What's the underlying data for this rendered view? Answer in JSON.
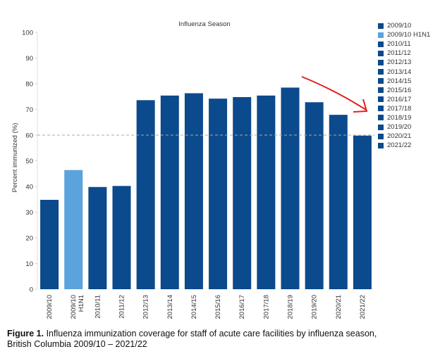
{
  "chart_data": {
    "type": "bar",
    "title": "Influenza Season",
    "ylabel": "Percent immunized (%)",
    "xlabel": "",
    "ylim": [
      0,
      100
    ],
    "yticks": [
      0,
      10,
      20,
      30,
      40,
      50,
      60,
      70,
      80,
      90,
      100
    ],
    "categories": [
      "2009/10",
      "2009/10 H1N1",
      "2010/11",
      "2011/12",
      "2012/13",
      "2013/14",
      "2014/15",
      "2015/16",
      "2016/17",
      "2017/18",
      "2018/19",
      "2019/20",
      "2020/21",
      "2021/22"
    ],
    "values": [
      34.8,
      46.4,
      39.8,
      40.2,
      73.6,
      75.4,
      76.3,
      74.2,
      74.8,
      75.4,
      78.5,
      72.8,
      67.9,
      59.8
    ],
    "bar_colors": [
      "#0b4a8c",
      "#5ba3dc",
      "#0b4a8c",
      "#0b4a8c",
      "#0b4a8c",
      "#0b4a8c",
      "#0b4a8c",
      "#0b4a8c",
      "#0b4a8c",
      "#0b4a8c",
      "#0b4a8c",
      "#0b4a8c",
      "#0b4a8c",
      "#0b4a8c"
    ],
    "reference_line": 60,
    "grid": false,
    "legend_position": "right",
    "annotation": "red arrow pointing down toward the 2021/22 bar"
  },
  "legend": {
    "items": [
      {
        "label": "2009/10",
        "color": "#0b4a8c"
      },
      {
        "label": "2009/10 H1N1",
        "color": "#5ba3dc"
      },
      {
        "label": "2010/11",
        "color": "#0b4a8c"
      },
      {
        "label": "2011/12",
        "color": "#0b4a8c"
      },
      {
        "label": "2012/13",
        "color": "#0b4a8c"
      },
      {
        "label": "2013/14",
        "color": "#0b4a8c"
      },
      {
        "label": "2014/15",
        "color": "#0b4a8c"
      },
      {
        "label": "2015/16",
        "color": "#0b4a8c"
      },
      {
        "label": "2016/17",
        "color": "#0b4a8c"
      },
      {
        "label": "2017/18",
        "color": "#0b4a8c"
      },
      {
        "label": "2018/19",
        "color": "#0b4a8c"
      },
      {
        "label": "2019/20",
        "color": "#0b4a8c"
      },
      {
        "label": "2020/21",
        "color": "#0b4a8c"
      },
      {
        "label": "2021/22",
        "color": "#0b4a8c"
      }
    ]
  },
  "caption": {
    "label": "Figure 1.",
    "text": " Influenza immunization coverage for staff of acute care facilities by influenza season,",
    "line2": "British Columbia 2009/10 – 2021/22"
  },
  "colors": {
    "bar": "#0b4a8c",
    "bar_highlight": "#5ba3dc",
    "arrow": "#e0201b",
    "reference_line": "#aaaaaa"
  }
}
